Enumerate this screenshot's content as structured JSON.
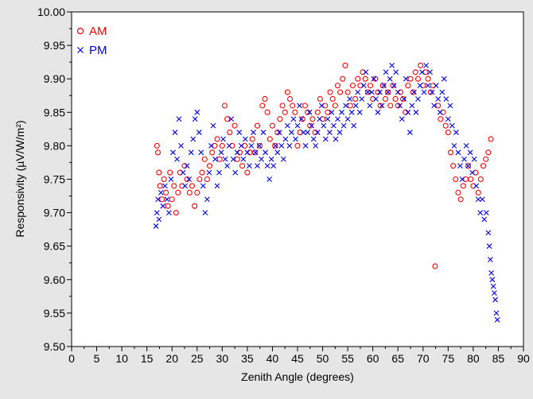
{
  "chart_data": {
    "type": "scatter",
    "title": "",
    "xlabel": "Zenith Angle (degrees)",
    "ylabel": "Responsivity (µV/W/m²)",
    "xlim": [
      0,
      90
    ],
    "ylim": [
      9.5,
      10.0
    ],
    "xticks": [
      "0",
      "5",
      "10",
      "15",
      "20",
      "25",
      "30",
      "35",
      "40",
      "45",
      "50",
      "55",
      "60",
      "65",
      "70",
      "75",
      "80",
      "85",
      "90"
    ],
    "yticks": [
      "9.50",
      "9.55",
      "9.60",
      "9.65",
      "9.70",
      "9.75",
      "9.80",
      "9.85",
      "9.90",
      "9.95",
      "10.00"
    ],
    "grid": false,
    "legend_position": "top-left",
    "series": [
      {
        "name": "AM",
        "marker": "circle",
        "color": "#ff0000",
        "points": [
          [
            17.0,
            9.8
          ],
          [
            17.2,
            9.79
          ],
          [
            17.4,
            9.76
          ],
          [
            17.6,
            9.74
          ],
          [
            18.0,
            9.72
          ],
          [
            18.4,
            9.75
          ],
          [
            18.8,
            9.73
          ],
          [
            19.2,
            9.71
          ],
          [
            19.6,
            9.76
          ],
          [
            20.0,
            9.72
          ],
          [
            20.4,
            9.74
          ],
          [
            20.8,
            9.7
          ],
          [
            21.2,
            9.73
          ],
          [
            21.6,
            9.76
          ],
          [
            22.0,
            9.74
          ],
          [
            22.5,
            9.77
          ],
          [
            23.0,
            9.75
          ],
          [
            23.5,
            9.73
          ],
          [
            24.0,
            9.74
          ],
          [
            24.5,
            9.71
          ],
          [
            25.0,
            9.73
          ],
          [
            25.5,
            9.75
          ],
          [
            26.0,
            9.76
          ],
          [
            26.5,
            9.78
          ],
          [
            27.0,
            9.75
          ],
          [
            27.5,
            9.77
          ],
          [
            28.0,
            9.79
          ],
          [
            28.5,
            9.8
          ],
          [
            29.0,
            9.81
          ],
          [
            29.5,
            9.78
          ],
          [
            30.0,
            9.8
          ],
          [
            30.5,
            9.86
          ],
          [
            31.0,
            9.84
          ],
          [
            31.5,
            9.82
          ],
          [
            32.0,
            9.8
          ],
          [
            32.5,
            9.83
          ],
          [
            33.0,
            9.78
          ],
          [
            33.5,
            9.79
          ],
          [
            34.0,
            9.77
          ],
          [
            34.5,
            9.8
          ],
          [
            35.0,
            9.76
          ],
          [
            35.5,
            9.79
          ],
          [
            36.0,
            9.81
          ],
          [
            36.5,
            9.79
          ],
          [
            37.0,
            9.83
          ],
          [
            37.5,
            9.8
          ],
          [
            38.0,
            9.86
          ],
          [
            38.5,
            9.87
          ],
          [
            39.0,
            9.85
          ],
          [
            39.5,
            9.81
          ],
          [
            40.0,
            9.83
          ],
          [
            40.5,
            9.8
          ],
          [
            41.0,
            9.82
          ],
          [
            41.5,
            9.84
          ],
          [
            42.0,
            9.86
          ],
          [
            42.5,
            9.85
          ],
          [
            43.0,
            9.88
          ],
          [
            43.5,
            9.87
          ],
          [
            44.0,
            9.86
          ],
          [
            44.5,
            9.85
          ],
          [
            45.0,
            9.8
          ],
          [
            45.5,
            9.82
          ],
          [
            46.0,
            9.84
          ],
          [
            46.5,
            9.86
          ],
          [
            47.0,
            9.85
          ],
          [
            47.5,
            9.83
          ],
          [
            48.0,
            9.84
          ],
          [
            48.5,
            9.82
          ],
          [
            49.0,
            9.85
          ],
          [
            49.5,
            9.87
          ],
          [
            50.0,
            9.84
          ],
          [
            50.5,
            9.86
          ],
          [
            51.0,
            9.85
          ],
          [
            51.5,
            9.88
          ],
          [
            52.0,
            9.87
          ],
          [
            52.5,
            9.86
          ],
          [
            53.0,
            9.89
          ],
          [
            53.5,
            9.88
          ],
          [
            54.0,
            9.9
          ],
          [
            54.5,
            9.92
          ],
          [
            55.0,
            9.88
          ],
          [
            55.5,
            9.86
          ],
          [
            56.0,
            9.89
          ],
          [
            56.5,
            9.87
          ],
          [
            57.0,
            9.9
          ],
          [
            57.5,
            9.89
          ],
          [
            58.0,
            9.91
          ],
          [
            58.5,
            9.9
          ],
          [
            59.0,
            9.88
          ],
          [
            59.5,
            9.89
          ],
          [
            60.0,
            9.87
          ],
          [
            60.5,
            9.9
          ],
          [
            61.0,
            9.88
          ],
          [
            61.5,
            9.86
          ],
          [
            62.0,
            9.89
          ],
          [
            62.5,
            9.87
          ],
          [
            63.0,
            9.88
          ],
          [
            63.5,
            9.86
          ],
          [
            64.0,
            9.89
          ],
          [
            64.5,
            9.87
          ],
          [
            65.0,
            9.86
          ],
          [
            65.5,
            9.88
          ],
          [
            66.0,
            9.87
          ],
          [
            66.5,
            9.85
          ],
          [
            67.0,
            9.89
          ],
          [
            67.5,
            9.9
          ],
          [
            68.0,
            9.88
          ],
          [
            68.5,
            9.91
          ],
          [
            69.0,
            9.9
          ],
          [
            69.5,
            9.92
          ],
          [
            70.0,
            9.89
          ],
          [
            70.5,
            9.91
          ],
          [
            71.0,
            9.9
          ],
          [
            71.5,
            9.88
          ],
          [
            72.0,
            9.89
          ],
          [
            72.4,
            9.62
          ],
          [
            73.0,
            9.86
          ],
          [
            73.5,
            9.84
          ],
          [
            74.0,
            9.85
          ],
          [
            74.5,
            9.83
          ],
          [
            75.0,
            9.82
          ],
          [
            75.5,
            9.79
          ],
          [
            76.0,
            9.77
          ],
          [
            76.5,
            9.75
          ],
          [
            77.0,
            9.73
          ],
          [
            77.5,
            9.72
          ],
          [
            78.0,
            9.74
          ],
          [
            78.5,
            9.75
          ],
          [
            79.0,
            9.77
          ],
          [
            79.5,
            9.75
          ],
          [
            80.0,
            9.74
          ],
          [
            80.5,
            9.76
          ],
          [
            81.0,
            9.73
          ],
          [
            81.5,
            9.75
          ],
          [
            82.0,
            9.77
          ],
          [
            82.5,
            9.78
          ],
          [
            83.0,
            9.79
          ],
          [
            83.5,
            9.81
          ]
        ]
      },
      {
        "name": "PM",
        "marker": "x",
        "color": "#0000ee",
        "points": [
          [
            16.8,
            9.68
          ],
          [
            17.0,
            9.7
          ],
          [
            17.2,
            9.72
          ],
          [
            17.4,
            9.69
          ],
          [
            17.8,
            9.73
          ],
          [
            18.2,
            9.71
          ],
          [
            18.6,
            9.74
          ],
          [
            19.0,
            9.72
          ],
          [
            19.4,
            9.7
          ],
          [
            19.8,
            9.75
          ],
          [
            20.2,
            9.79
          ],
          [
            20.6,
            9.82
          ],
          [
            21.0,
            9.78
          ],
          [
            21.4,
            9.84
          ],
          [
            21.8,
            9.8
          ],
          [
            22.2,
            9.76
          ],
          [
            22.6,
            9.74
          ],
          [
            23.0,
            9.77
          ],
          [
            23.4,
            9.75
          ],
          [
            23.8,
            9.79
          ],
          [
            24.2,
            9.81
          ],
          [
            24.6,
            9.84
          ],
          [
            25.0,
            9.85
          ],
          [
            25.4,
            9.82
          ],
          [
            25.8,
            9.79
          ],
          [
            26.2,
            9.74
          ],
          [
            26.6,
            9.7
          ],
          [
            27.0,
            9.72
          ],
          [
            27.4,
            9.76
          ],
          [
            27.8,
            9.8
          ],
          [
            28.2,
            9.83
          ],
          [
            28.6,
            9.78
          ],
          [
            29.0,
            9.74
          ],
          [
            29.4,
            9.76
          ],
          [
            29.8,
            9.79
          ],
          [
            30.2,
            9.81
          ],
          [
            30.6,
            9.78
          ],
          [
            31.0,
            9.77
          ],
          [
            31.4,
            9.8
          ],
          [
            31.8,
            9.84
          ],
          [
            32.2,
            9.78
          ],
          [
            32.6,
            9.76
          ],
          [
            33.0,
            9.79
          ],
          [
            33.4,
            9.82
          ],
          [
            33.8,
            9.8
          ],
          [
            34.2,
            9.78
          ],
          [
            34.6,
            9.81
          ],
          [
            35.0,
            9.79
          ],
          [
            35.4,
            9.77
          ],
          [
            35.8,
            9.8
          ],
          [
            36.2,
            9.82
          ],
          [
            36.6,
            9.79
          ],
          [
            37.0,
            9.77
          ],
          [
            37.4,
            9.8
          ],
          [
            37.8,
            9.78
          ],
          [
            38.2,
            9.82
          ],
          [
            38.6,
            9.79
          ],
          [
            39.0,
            9.77
          ],
          [
            39.4,
            9.75
          ],
          [
            39.8,
            9.78
          ],
          [
            40.2,
            9.77
          ],
          [
            40.6,
            9.8
          ],
          [
            41.0,
            9.79
          ],
          [
            41.4,
            9.82
          ],
          [
            41.8,
            9.8
          ],
          [
            42.2,
            9.78
          ],
          [
            42.6,
            9.81
          ],
          [
            43.0,
            9.83
          ],
          [
            43.4,
            9.8
          ],
          [
            43.8,
            9.82
          ],
          [
            44.2,
            9.84
          ],
          [
            44.6,
            9.81
          ],
          [
            45.0,
            9.83
          ],
          [
            45.4,
            9.86
          ],
          [
            45.8,
            9.84
          ],
          [
            46.2,
            9.82
          ],
          [
            46.6,
            9.8
          ],
          [
            47.0,
            9.82
          ],
          [
            47.4,
            9.85
          ],
          [
            47.8,
            9.83
          ],
          [
            48.2,
            9.81
          ],
          [
            48.6,
            9.8
          ],
          [
            49.0,
            9.82
          ],
          [
            49.4,
            9.84
          ],
          [
            49.8,
            9.86
          ],
          [
            50.2,
            9.83
          ],
          [
            50.6,
            9.81
          ],
          [
            51.0,
            9.84
          ],
          [
            51.4,
            9.82
          ],
          [
            51.8,
            9.85
          ],
          [
            52.2,
            9.83
          ],
          [
            52.6,
            9.81
          ],
          [
            53.0,
            9.84
          ],
          [
            53.4,
            9.82
          ],
          [
            53.8,
            9.85
          ],
          [
            54.2,
            9.83
          ],
          [
            54.6,
            9.86
          ],
          [
            55.0,
            9.84
          ],
          [
            55.4,
            9.87
          ],
          [
            55.8,
            9.85
          ],
          [
            56.2,
            9.83
          ],
          [
            56.6,
            9.86
          ],
          [
            57.0,
            9.88
          ],
          [
            57.4,
            9.85
          ],
          [
            57.8,
            9.87
          ],
          [
            58.2,
            9.89
          ],
          [
            58.6,
            9.91
          ],
          [
            59.0,
            9.88
          ],
          [
            59.4,
            9.86
          ],
          [
            59.8,
            9.88
          ],
          [
            60.2,
            9.9
          ],
          [
            60.6,
            9.87
          ],
          [
            61.0,
            9.85
          ],
          [
            61.4,
            9.88
          ],
          [
            61.8,
            9.86
          ],
          [
            62.2,
            9.89
          ],
          [
            62.6,
            9.91
          ],
          [
            63.0,
            9.88
          ],
          [
            63.4,
            9.9
          ],
          [
            63.8,
            9.92
          ],
          [
            64.2,
            9.89
          ],
          [
            64.6,
            9.91
          ],
          [
            65.0,
            9.88
          ],
          [
            65.4,
            9.86
          ],
          [
            65.8,
            9.84
          ],
          [
            66.2,
            9.87
          ],
          [
            66.6,
            9.9
          ],
          [
            67.0,
            9.85
          ],
          [
            67.4,
            9.82
          ],
          [
            67.8,
            9.86
          ],
          [
            68.2,
            9.88
          ],
          [
            68.6,
            9.85
          ],
          [
            69.0,
            9.87
          ],
          [
            69.4,
            9.89
          ],
          [
            69.8,
            9.91
          ],
          [
            70.2,
            9.88
          ],
          [
            70.6,
            9.92
          ],
          [
            71.0,
            9.89
          ],
          [
            71.4,
            9.91
          ],
          [
            71.8,
            9.88
          ],
          [
            72.2,
            9.86
          ],
          [
            72.6,
            9.89
          ],
          [
            73.0,
            9.87
          ],
          [
            73.4,
            9.85
          ],
          [
            73.8,
            9.88
          ],
          [
            74.2,
            9.9
          ],
          [
            74.6,
            9.87
          ],
          [
            75.0,
            9.84
          ],
          [
            75.4,
            9.86
          ],
          [
            75.8,
            9.83
          ],
          [
            76.2,
            9.8
          ],
          [
            76.6,
            9.82
          ],
          [
            77.0,
            9.79
          ],
          [
            77.4,
            9.77
          ],
          [
            77.8,
            9.75
          ],
          [
            78.2,
            9.78
          ],
          [
            78.6,
            9.8
          ],
          [
            79.0,
            9.77
          ],
          [
            79.4,
            9.79
          ],
          [
            79.8,
            9.76
          ],
          [
            80.2,
            9.78
          ],
          [
            80.6,
            9.74
          ],
          [
            81.0,
            9.72
          ],
          [
            81.4,
            9.7
          ],
          [
            81.8,
            9.72
          ],
          [
            82.2,
            9.69
          ],
          [
            82.6,
            9.7
          ],
          [
            83.0,
            9.67
          ],
          [
            83.2,
            9.65
          ],
          [
            83.4,
            9.63
          ],
          [
            83.6,
            9.61
          ],
          [
            83.8,
            9.6
          ],
          [
            84.0,
            9.59
          ],
          [
            84.2,
            9.58
          ],
          [
            84.4,
            9.57
          ],
          [
            84.6,
            9.55
          ],
          [
            84.8,
            9.54
          ]
        ]
      }
    ]
  }
}
